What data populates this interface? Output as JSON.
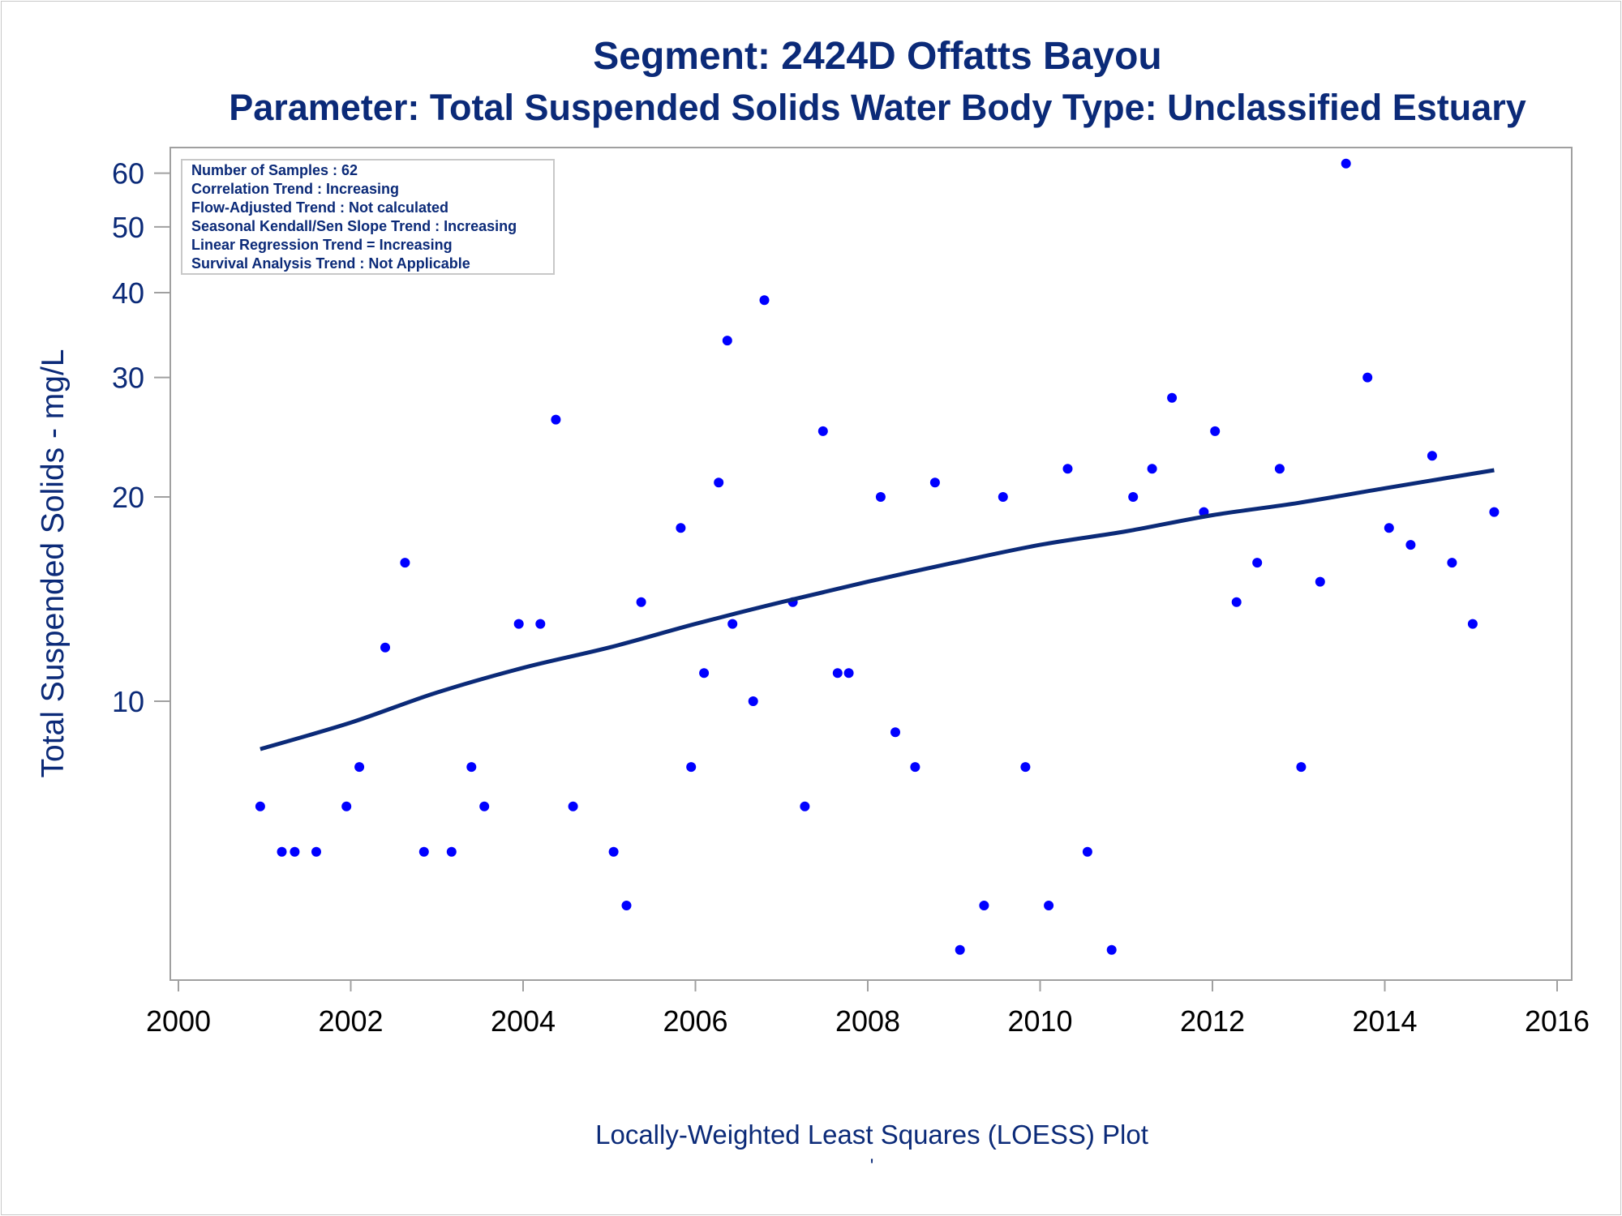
{
  "chart_data": {
    "type": "scatter",
    "title": "Segment: 2424D  Offatts Bayou",
    "subtitle": "Parameter: Total Suspended Solids   Water Body Type: Unclassified Estuary",
    "xlabel": "Locally-Weighted Least Squares (LOESS) Plot",
    "ylabel": "Total Suspended Solids - mg/L",
    "footnote": "'",
    "x_scale": "linear",
    "y_scale": "log",
    "xlim": [
      2000,
      2016
    ],
    "ylim": [
      4,
      65
    ],
    "x_ticks": [
      2000,
      2002,
      2004,
      2006,
      2008,
      2010,
      2012,
      2014,
      2016
    ],
    "y_ticks": [
      10,
      20,
      30,
      40,
      50,
      60
    ],
    "grid": false,
    "stats_box": {
      "placement": "top-left",
      "lines": [
        "Number of Samples : 62",
        "Correlation Trend : Increasing",
        "Flow-Adjusted Trend : Not calculated",
        "Seasonal Kendall/Sen Slope Trend : Increasing",
        "Linear Regression Trend = Increasing",
        "Survival Analysis Trend : Not Applicable"
      ]
    },
    "colors": {
      "points": "#0000ff",
      "trend_line": "#0b2a78",
      "text": "#0b2a78"
    },
    "points": [
      [
        2000.95,
        7
      ],
      [
        2001.2,
        6
      ],
      [
        2001.35,
        6
      ],
      [
        2001.6,
        6
      ],
      [
        2001.95,
        7
      ],
      [
        2002.1,
        8
      ],
      [
        2002.4,
        12
      ],
      [
        2002.63,
        16
      ],
      [
        2002.85,
        6
      ],
      [
        2003.17,
        6
      ],
      [
        2003.4,
        8
      ],
      [
        2003.55,
        7
      ],
      [
        2003.95,
        13
      ],
      [
        2004.2,
        13
      ],
      [
        2004.38,
        26
      ],
      [
        2004.58,
        7
      ],
      [
        2005.05,
        6
      ],
      [
        2005.2,
        5
      ],
      [
        2005.37,
        14
      ],
      [
        2005.83,
        18
      ],
      [
        2005.95,
        8
      ],
      [
        2006.1,
        11
      ],
      [
        2006.27,
        21
      ],
      [
        2006.37,
        34
      ],
      [
        2006.43,
        13
      ],
      [
        2006.67,
        10
      ],
      [
        2006.8,
        39
      ],
      [
        2007.13,
        14
      ],
      [
        2007.27,
        7
      ],
      [
        2007.48,
        25
      ],
      [
        2007.65,
        11
      ],
      [
        2007.78,
        11
      ],
      [
        2008.15,
        20
      ],
      [
        2008.32,
        9
      ],
      [
        2008.55,
        8
      ],
      [
        2008.78,
        21
      ],
      [
        2009.07,
        4.3
      ],
      [
        2009.35,
        5
      ],
      [
        2009.57,
        20
      ],
      [
        2009.83,
        8
      ],
      [
        2010.1,
        5
      ],
      [
        2010.32,
        22
      ],
      [
        2010.55,
        6
      ],
      [
        2010.83,
        4.3
      ],
      [
        2011.08,
        20
      ],
      [
        2011.3,
        22
      ],
      [
        2011.53,
        28
      ],
      [
        2011.9,
        19
      ],
      [
        2012.03,
        25
      ],
      [
        2012.28,
        14
      ],
      [
        2012.52,
        16
      ],
      [
        2012.78,
        22
      ],
      [
        2013.03,
        8
      ],
      [
        2013.25,
        15
      ],
      [
        2013.55,
        62
      ],
      [
        2013.8,
        30
      ],
      [
        2014.05,
        18
      ],
      [
        2014.3,
        17
      ],
      [
        2014.55,
        23
      ],
      [
        2014.78,
        16
      ],
      [
        2015.02,
        13
      ],
      [
        2015.27,
        19
      ]
    ],
    "loess": [
      [
        2000.95,
        8.5
      ],
      [
        2002,
        9.3
      ],
      [
        2003,
        10.3
      ],
      [
        2004,
        11.2
      ],
      [
        2005,
        12.0
      ],
      [
        2006,
        13.0
      ],
      [
        2007,
        14.0
      ],
      [
        2008,
        15.0
      ],
      [
        2009,
        16.0
      ],
      [
        2010,
        17.0
      ],
      [
        2011,
        17.8
      ],
      [
        2012,
        18.8
      ],
      [
        2013,
        19.6
      ],
      [
        2014,
        20.6
      ],
      [
        2015.27,
        21.9
      ]
    ]
  }
}
